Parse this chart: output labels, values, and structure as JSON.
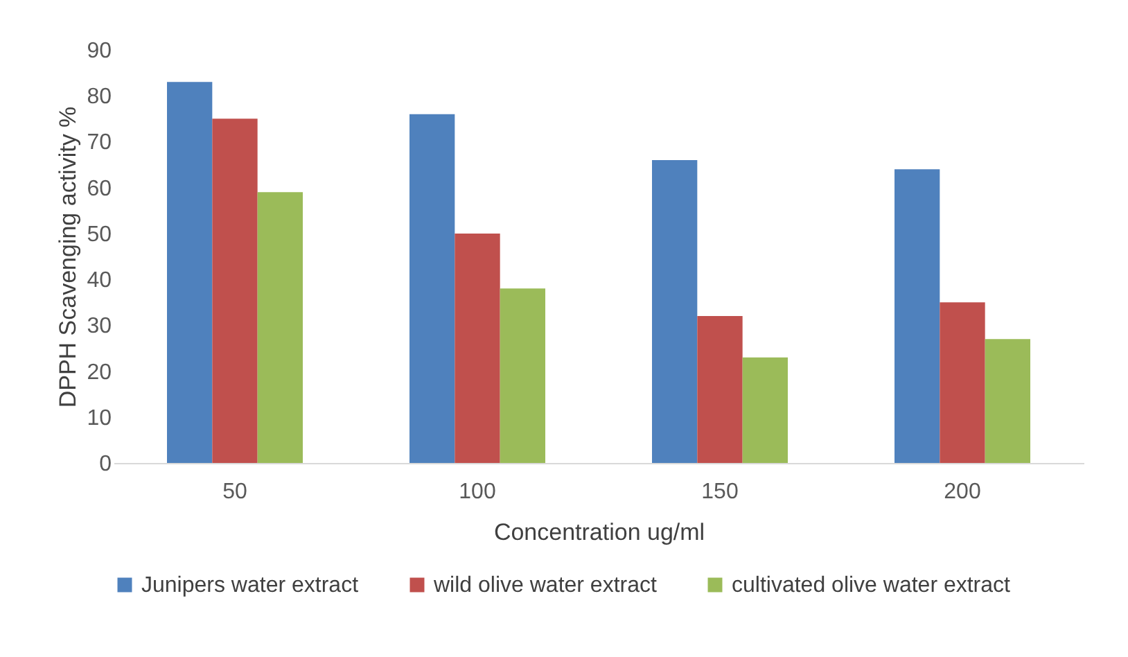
{
  "chart_data": {
    "type": "bar",
    "xlabel": "Concentration ug/ml",
    "ylabel": "DPPH Scavenging activity %",
    "categories": [
      "50",
      "100",
      "150",
      "200"
    ],
    "series": [
      {
        "name": "Junipers water extract",
        "color": "#4f81bd",
        "values": [
          83,
          76,
          66,
          64
        ]
      },
      {
        "name": "wild olive water extract",
        "color": "#c0504d",
        "values": [
          75,
          50,
          32,
          35
        ]
      },
      {
        "name": "cultivated olive water extract",
        "color": "#9bbb59",
        "values": [
          59,
          38,
          23,
          27
        ]
      }
    ],
    "ylim": [
      0,
      90
    ],
    "yticks": [
      0,
      10,
      20,
      30,
      40,
      50,
      60,
      70,
      80,
      90
    ],
    "grid": false,
    "legend": "bottom"
  }
}
